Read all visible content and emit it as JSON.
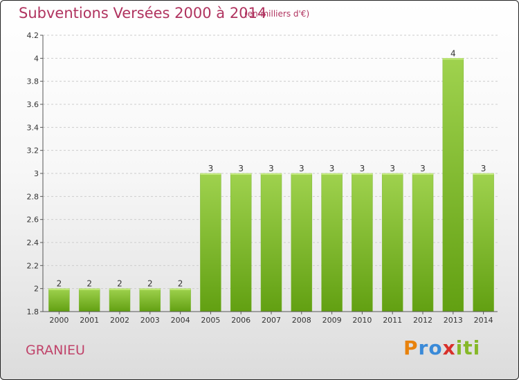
{
  "header": {
    "title": "Subventions Versées 2000 à 2014",
    "unit_note": "(en milliers d'€)"
  },
  "footer": {
    "place": "GRANIEU",
    "logo_letters": [
      "P",
      "r",
      "o",
      "x",
      "i",
      "t",
      "i"
    ],
    "logo_colors": [
      "#e8820c",
      "#3a8ad8",
      "#3a8ad8",
      "#d8302a",
      "#86b828",
      "#86b828",
      "#86b828"
    ]
  },
  "colors": {
    "bar_top": "#9fd24e",
    "bar_bottom": "#62a012",
    "grid": "#cccccc",
    "axis": "#555555"
  },
  "chart_data": {
    "type": "bar",
    "title": "Subventions Versées 2000 à 2014",
    "categories": [
      "2000",
      "2001",
      "2002",
      "2003",
      "2004",
      "2005",
      "2006",
      "2007",
      "2008",
      "2009",
      "2010",
      "2011",
      "2012",
      "2013",
      "2014"
    ],
    "values": [
      2,
      2,
      2,
      2,
      2,
      3,
      3,
      3,
      3,
      3,
      3,
      3,
      3,
      4,
      3
    ],
    "value_labels": [
      "2",
      "2",
      "2",
      "2",
      "2",
      "3",
      "3",
      "3",
      "3",
      "3",
      "3",
      "3",
      "3",
      "4",
      "3"
    ],
    "ylim": [
      1.8,
      4.2
    ],
    "yticks": [
      1.8,
      2,
      2.2,
      2.4,
      2.6,
      2.8,
      3,
      3.2,
      3.4,
      3.6,
      3.8,
      4,
      4.2
    ],
    "ytick_labels": [
      "1.8",
      "2",
      "2.2",
      "2.4",
      "2.6",
      "2.8",
      "3",
      "3.2",
      "3.4",
      "3.6",
      "3.8",
      "4",
      "4.2"
    ],
    "xlabel": "",
    "ylabel": "",
    "grid": true,
    "legend": "none"
  }
}
